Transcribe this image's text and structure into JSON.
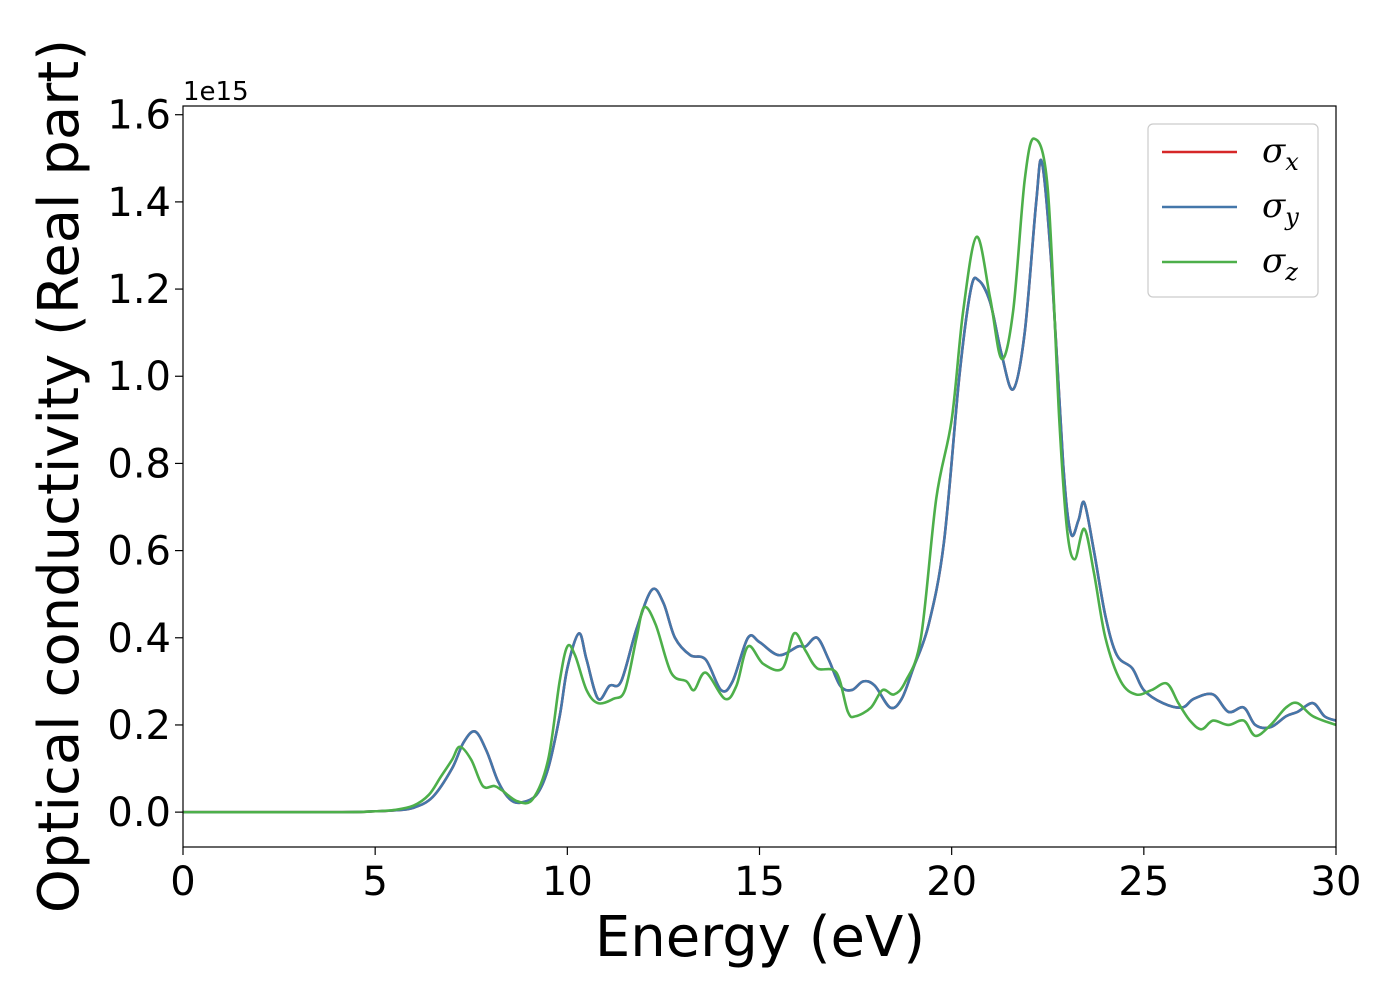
{
  "chart_data": {
    "type": "line",
    "xlabel": "Energy (eV)",
    "ylabel": "Optical conductivity (Real part)",
    "y_offset_label": "1e15",
    "xlim": [
      0,
      30
    ],
    "ylim": [
      -0.08,
      1.62
    ],
    "x_ticks": [
      0,
      5,
      10,
      15,
      20,
      25,
      30
    ],
    "x_tick_labels": [
      "0",
      "5",
      "10",
      "15",
      "20",
      "25",
      "30"
    ],
    "y_ticks": [
      0.0,
      0.2,
      0.4,
      0.6,
      0.8,
      1.0,
      1.2,
      1.4,
      1.6
    ],
    "y_tick_labels": [
      "0.0",
      "0.2",
      "0.4",
      "0.6",
      "0.8",
      "1.0",
      "1.2",
      "1.4",
      "1.6"
    ],
    "grid": false,
    "legend_position": "top-right",
    "series": [
      {
        "name": "σx",
        "legend_symbol": "σ",
        "legend_subscript": "x",
        "color": "#d62728",
        "points": [
          [
            0,
            0
          ],
          [
            4,
            0
          ],
          [
            5,
            0.002
          ],
          [
            5.5,
            0.004
          ],
          [
            6,
            0.01
          ],
          [
            6.5,
            0.035
          ],
          [
            7,
            0.1
          ],
          [
            7.3,
            0.16
          ],
          [
            7.6,
            0.185
          ],
          [
            7.9,
            0.14
          ],
          [
            8.2,
            0.07
          ],
          [
            8.5,
            0.03
          ],
          [
            8.8,
            0.022
          ],
          [
            9.2,
            0.04
          ],
          [
            9.5,
            0.1
          ],
          [
            9.8,
            0.22
          ],
          [
            10.0,
            0.33
          ],
          [
            10.3,
            0.41
          ],
          [
            10.5,
            0.35
          ],
          [
            10.8,
            0.26
          ],
          [
            11.1,
            0.29
          ],
          [
            11.4,
            0.3
          ],
          [
            11.8,
            0.42
          ],
          [
            12.2,
            0.51
          ],
          [
            12.5,
            0.48
          ],
          [
            12.8,
            0.4
          ],
          [
            13.2,
            0.36
          ],
          [
            13.6,
            0.35
          ],
          [
            14.0,
            0.28
          ],
          [
            14.3,
            0.3
          ],
          [
            14.7,
            0.4
          ],
          [
            15.0,
            0.39
          ],
          [
            15.5,
            0.36
          ],
          [
            16.0,
            0.38
          ],
          [
            16.2,
            0.38
          ],
          [
            16.5,
            0.4
          ],
          [
            16.8,
            0.35
          ],
          [
            17.1,
            0.29
          ],
          [
            17.4,
            0.28
          ],
          [
            17.7,
            0.3
          ],
          [
            18.0,
            0.29
          ],
          [
            18.4,
            0.24
          ],
          [
            18.7,
            0.26
          ],
          [
            19.0,
            0.33
          ],
          [
            19.4,
            0.43
          ],
          [
            19.8,
            0.62
          ],
          [
            20.2,
            1.0
          ],
          [
            20.5,
            1.2
          ],
          [
            20.7,
            1.22
          ],
          [
            21.0,
            1.17
          ],
          [
            21.3,
            1.05
          ],
          [
            21.6,
            0.97
          ],
          [
            21.9,
            1.1
          ],
          [
            22.2,
            1.4
          ],
          [
            22.35,
            1.49
          ],
          [
            22.6,
            1.25
          ],
          [
            22.9,
            0.8
          ],
          [
            23.1,
            0.64
          ],
          [
            23.3,
            0.67
          ],
          [
            23.45,
            0.71
          ],
          [
            23.7,
            0.6
          ],
          [
            24.0,
            0.45
          ],
          [
            24.3,
            0.36
          ],
          [
            24.7,
            0.33
          ],
          [
            25.0,
            0.28
          ],
          [
            25.5,
            0.25
          ],
          [
            26.0,
            0.24
          ],
          [
            26.3,
            0.26
          ],
          [
            26.8,
            0.27
          ],
          [
            27.2,
            0.23
          ],
          [
            27.6,
            0.24
          ],
          [
            27.9,
            0.2
          ],
          [
            28.3,
            0.195
          ],
          [
            28.7,
            0.22
          ],
          [
            29.0,
            0.23
          ],
          [
            29.4,
            0.25
          ],
          [
            29.7,
            0.22
          ],
          [
            30.0,
            0.21
          ]
        ]
      },
      {
        "name": "σy",
        "legend_symbol": "σ",
        "legend_subscript": "y",
        "color": "#4477aa",
        "points": [
          [
            0,
            0
          ],
          [
            4,
            0
          ],
          [
            5,
            0.002
          ],
          [
            5.5,
            0.004
          ],
          [
            6,
            0.01
          ],
          [
            6.5,
            0.035
          ],
          [
            7,
            0.1
          ],
          [
            7.3,
            0.16
          ],
          [
            7.6,
            0.185
          ],
          [
            7.9,
            0.14
          ],
          [
            8.2,
            0.07
          ],
          [
            8.5,
            0.03
          ],
          [
            8.8,
            0.022
          ],
          [
            9.2,
            0.04
          ],
          [
            9.5,
            0.1
          ],
          [
            9.8,
            0.22
          ],
          [
            10.0,
            0.33
          ],
          [
            10.3,
            0.41
          ],
          [
            10.5,
            0.35
          ],
          [
            10.8,
            0.26
          ],
          [
            11.1,
            0.29
          ],
          [
            11.4,
            0.3
          ],
          [
            11.8,
            0.42
          ],
          [
            12.2,
            0.51
          ],
          [
            12.5,
            0.48
          ],
          [
            12.8,
            0.4
          ],
          [
            13.2,
            0.36
          ],
          [
            13.6,
            0.35
          ],
          [
            14.0,
            0.28
          ],
          [
            14.3,
            0.3
          ],
          [
            14.7,
            0.4
          ],
          [
            15.0,
            0.39
          ],
          [
            15.5,
            0.36
          ],
          [
            16.0,
            0.38
          ],
          [
            16.2,
            0.38
          ],
          [
            16.5,
            0.4
          ],
          [
            16.8,
            0.35
          ],
          [
            17.1,
            0.29
          ],
          [
            17.4,
            0.28
          ],
          [
            17.7,
            0.3
          ],
          [
            18.0,
            0.29
          ],
          [
            18.4,
            0.24
          ],
          [
            18.7,
            0.26
          ],
          [
            19.0,
            0.33
          ],
          [
            19.4,
            0.43
          ],
          [
            19.8,
            0.62
          ],
          [
            20.2,
            1.0
          ],
          [
            20.5,
            1.2
          ],
          [
            20.7,
            1.22
          ],
          [
            21.0,
            1.17
          ],
          [
            21.3,
            1.05
          ],
          [
            21.6,
            0.97
          ],
          [
            21.9,
            1.1
          ],
          [
            22.2,
            1.4
          ],
          [
            22.35,
            1.49
          ],
          [
            22.6,
            1.25
          ],
          [
            22.9,
            0.8
          ],
          [
            23.1,
            0.64
          ],
          [
            23.3,
            0.67
          ],
          [
            23.45,
            0.71
          ],
          [
            23.7,
            0.6
          ],
          [
            24.0,
            0.45
          ],
          [
            24.3,
            0.36
          ],
          [
            24.7,
            0.33
          ],
          [
            25.0,
            0.28
          ],
          [
            25.5,
            0.25
          ],
          [
            26.0,
            0.24
          ],
          [
            26.3,
            0.26
          ],
          [
            26.8,
            0.27
          ],
          [
            27.2,
            0.23
          ],
          [
            27.6,
            0.24
          ],
          [
            27.9,
            0.2
          ],
          [
            28.3,
            0.195
          ],
          [
            28.7,
            0.22
          ],
          [
            29.0,
            0.23
          ],
          [
            29.4,
            0.25
          ],
          [
            29.7,
            0.22
          ],
          [
            30.0,
            0.21
          ]
        ]
      },
      {
        "name": "σz",
        "legend_symbol": "σ",
        "legend_subscript": "z",
        "color": "#4daf4a",
        "points": [
          [
            0,
            0
          ],
          [
            4,
            0
          ],
          [
            5,
            0.002
          ],
          [
            5.5,
            0.005
          ],
          [
            6,
            0.015
          ],
          [
            6.4,
            0.04
          ],
          [
            6.7,
            0.08
          ],
          [
            7.0,
            0.12
          ],
          [
            7.2,
            0.15
          ],
          [
            7.5,
            0.12
          ],
          [
            7.8,
            0.06
          ],
          [
            8.1,
            0.06
          ],
          [
            8.3,
            0.05
          ],
          [
            8.7,
            0.025
          ],
          [
            9.1,
            0.03
          ],
          [
            9.5,
            0.12
          ],
          [
            9.8,
            0.3
          ],
          [
            10.0,
            0.38
          ],
          [
            10.2,
            0.36
          ],
          [
            10.5,
            0.28
          ],
          [
            10.8,
            0.25
          ],
          [
            11.2,
            0.26
          ],
          [
            11.5,
            0.28
          ],
          [
            11.8,
            0.4
          ],
          [
            12.0,
            0.47
          ],
          [
            12.3,
            0.43
          ],
          [
            12.7,
            0.32
          ],
          [
            13.1,
            0.3
          ],
          [
            13.3,
            0.28
          ],
          [
            13.6,
            0.32
          ],
          [
            14.1,
            0.26
          ],
          [
            14.4,
            0.29
          ],
          [
            14.7,
            0.38
          ],
          [
            15.1,
            0.34
          ],
          [
            15.6,
            0.33
          ],
          [
            15.9,
            0.41
          ],
          [
            16.2,
            0.37
          ],
          [
            16.5,
            0.33
          ],
          [
            17.0,
            0.32
          ],
          [
            17.3,
            0.23
          ],
          [
            17.5,
            0.22
          ],
          [
            17.9,
            0.24
          ],
          [
            18.2,
            0.28
          ],
          [
            18.5,
            0.27
          ],
          [
            18.8,
            0.3
          ],
          [
            19.2,
            0.4
          ],
          [
            19.6,
            0.72
          ],
          [
            20.0,
            0.9
          ],
          [
            20.3,
            1.15
          ],
          [
            20.65,
            1.32
          ],
          [
            21.0,
            1.18
          ],
          [
            21.3,
            1.04
          ],
          [
            21.6,
            1.15
          ],
          [
            21.9,
            1.45
          ],
          [
            22.15,
            1.545
          ],
          [
            22.5,
            1.43
          ],
          [
            22.8,
            0.9
          ],
          [
            23.0,
            0.65
          ],
          [
            23.2,
            0.58
          ],
          [
            23.45,
            0.65
          ],
          [
            23.7,
            0.55
          ],
          [
            24.0,
            0.4
          ],
          [
            24.4,
            0.3
          ],
          [
            24.8,
            0.27
          ],
          [
            25.2,
            0.28
          ],
          [
            25.6,
            0.295
          ],
          [
            25.9,
            0.25
          ],
          [
            26.2,
            0.21
          ],
          [
            26.5,
            0.19
          ],
          [
            26.8,
            0.21
          ],
          [
            27.2,
            0.2
          ],
          [
            27.6,
            0.21
          ],
          [
            27.9,
            0.175
          ],
          [
            28.3,
            0.2
          ],
          [
            28.7,
            0.24
          ],
          [
            29.0,
            0.25
          ],
          [
            29.4,
            0.22
          ],
          [
            30.0,
            0.2
          ]
        ]
      }
    ]
  }
}
